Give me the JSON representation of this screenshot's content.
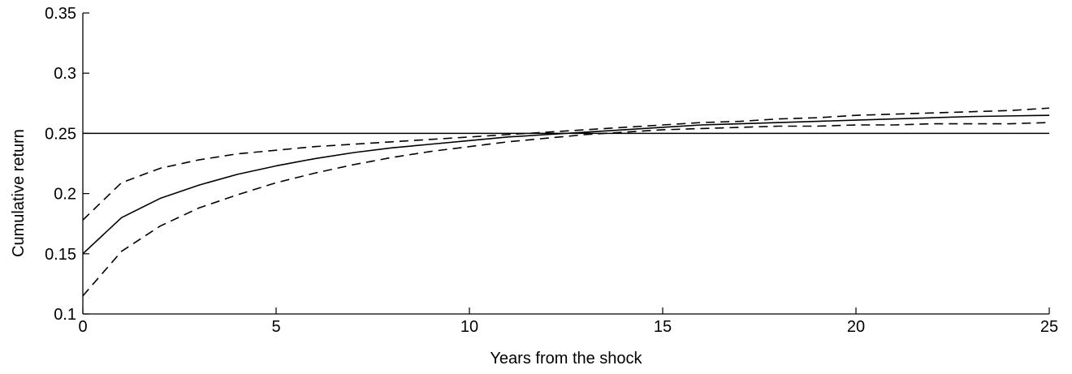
{
  "chart_data": {
    "type": "line",
    "title": "",
    "xlabel": "Years from the shock",
    "ylabel": "Cumulative return",
    "xlim": [
      0,
      25
    ],
    "ylim": [
      0.1,
      0.35
    ],
    "xticks": [
      0,
      5,
      10,
      15,
      20,
      25
    ],
    "xtick_labels": [
      "0",
      "5",
      "10",
      "15",
      "20",
      "25"
    ],
    "yticks": [
      0.1,
      0.15,
      0.2,
      0.25,
      0.3,
      0.35
    ],
    "ytick_labels": [
      "0.1",
      "0.15",
      "0.2",
      "0.25",
      "0.3",
      "0.35"
    ],
    "grid": false,
    "reference_line": {
      "y": 0.25,
      "color": "#000000"
    },
    "x": [
      0,
      1,
      2,
      3,
      4,
      5,
      6,
      7,
      8,
      9,
      10,
      11,
      12,
      13,
      14,
      15,
      16,
      17,
      18,
      19,
      20,
      21,
      22,
      23,
      24,
      25
    ],
    "series": [
      {
        "style": "solid",
        "color": "#000000",
        "values": [
          0.15,
          0.18,
          0.196,
          0.207,
          0.216,
          0.223,
          0.229,
          0.234,
          0.238,
          0.241,
          0.244,
          0.247,
          0.249,
          0.251,
          0.253,
          0.255,
          0.257,
          0.258,
          0.259,
          0.26,
          0.261,
          0.262,
          0.263,
          0.264,
          0.2645,
          0.265
        ]
      },
      {
        "style": "dashed",
        "color": "#000000",
        "values": [
          0.178,
          0.209,
          0.221,
          0.228,
          0.233,
          0.236,
          0.239,
          0.241,
          0.243,
          0.245,
          0.247,
          0.249,
          0.251,
          0.253,
          0.255,
          0.257,
          0.259,
          0.26,
          0.262,
          0.263,
          0.265,
          0.266,
          0.267,
          0.268,
          0.269,
          0.271
        ]
      },
      {
        "style": "dashed",
        "color": "#000000",
        "values": [
          0.115,
          0.152,
          0.173,
          0.188,
          0.199,
          0.209,
          0.217,
          0.224,
          0.23,
          0.235,
          0.239,
          0.243,
          0.246,
          0.249,
          0.251,
          0.253,
          0.254,
          0.255,
          0.256,
          0.256,
          0.257,
          0.257,
          0.258,
          0.258,
          0.258,
          0.259
        ]
      }
    ]
  }
}
